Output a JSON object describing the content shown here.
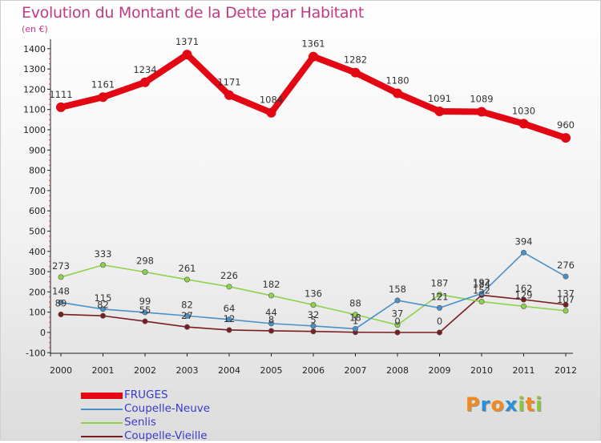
{
  "title": "Evolution du Montant de la Dette par Habitant",
  "subtitle": "(en €)",
  "logo": {
    "text": "Proxiti",
    "letter_colors": [
      "#f08a1c",
      "#2a8fd6",
      "#f08a1c",
      "#2a8fd6",
      "#8cc63f",
      "#f08a1c",
      "#8cc63f"
    ]
  },
  "chart_data": {
    "type": "line",
    "title": "Evolution du Montant de la Dette par Habitant",
    "ylabel": "(en €)",
    "xlabel": "",
    "x": [
      "2000",
      "2001",
      "2002",
      "2003",
      "2004",
      "2005",
      "2006",
      "2007",
      "2008",
      "2009",
      "2010",
      "2011",
      "2012"
    ],
    "yticks": [
      "-100",
      "0",
      "100",
      "200",
      "300",
      "400",
      "500",
      "600",
      "700",
      "800",
      "900",
      "1000",
      "1100",
      "1200",
      "1300",
      "1400"
    ],
    "ylim": [
      -100,
      1450
    ],
    "grid": false,
    "legend_position": "bottom-left",
    "series": [
      {
        "name": "FRUGES",
        "color": "#e30613",
        "values": [
          1111,
          1161,
          1234,
          1371,
          1171,
          1084,
          1361,
          1282,
          1180,
          1091,
          1089,
          1030,
          960
        ],
        "labels": [
          "1111",
          "1161",
          "1234",
          "1371",
          "1171",
          "1084",
          "1361",
          "1282",
          "1180",
          "1091",
          "1089",
          "1030",
          "960"
        ]
      },
      {
        "name": "Coupelle-Neuve",
        "color": "#4a90c8",
        "values": [
          148,
          115,
          99,
          82,
          64,
          44,
          32,
          18,
          158,
          121,
          192,
          394,
          276
        ],
        "labels": [
          "148",
          "115",
          "99",
          "82",
          "64",
          "44",
          "32",
          "18",
          "158",
          "121",
          "192",
          "394",
          "276"
        ]
      },
      {
        "name": "Senlis",
        "color": "#8cd24a",
        "values": [
          273,
          333,
          298,
          261,
          226,
          182,
          136,
          88,
          37,
          187,
          152,
          129,
          107
        ],
        "labels": [
          "273",
          "333",
          "298",
          "261",
          "226",
          "182",
          "136",
          "88",
          "37",
          "187",
          "152",
          "129",
          "107"
        ]
      },
      {
        "name": "Coupelle-Vieille",
        "color": "#7a1c20",
        "values": [
          89,
          82,
          55,
          27,
          12,
          8,
          5,
          1,
          0,
          0,
          184,
          162,
          137
        ],
        "labels": [
          "89",
          "82",
          "55",
          "27",
          "12",
          "8",
          "5",
          "1",
          "0",
          "0",
          "184",
          "162",
          "137"
        ]
      }
    ]
  }
}
